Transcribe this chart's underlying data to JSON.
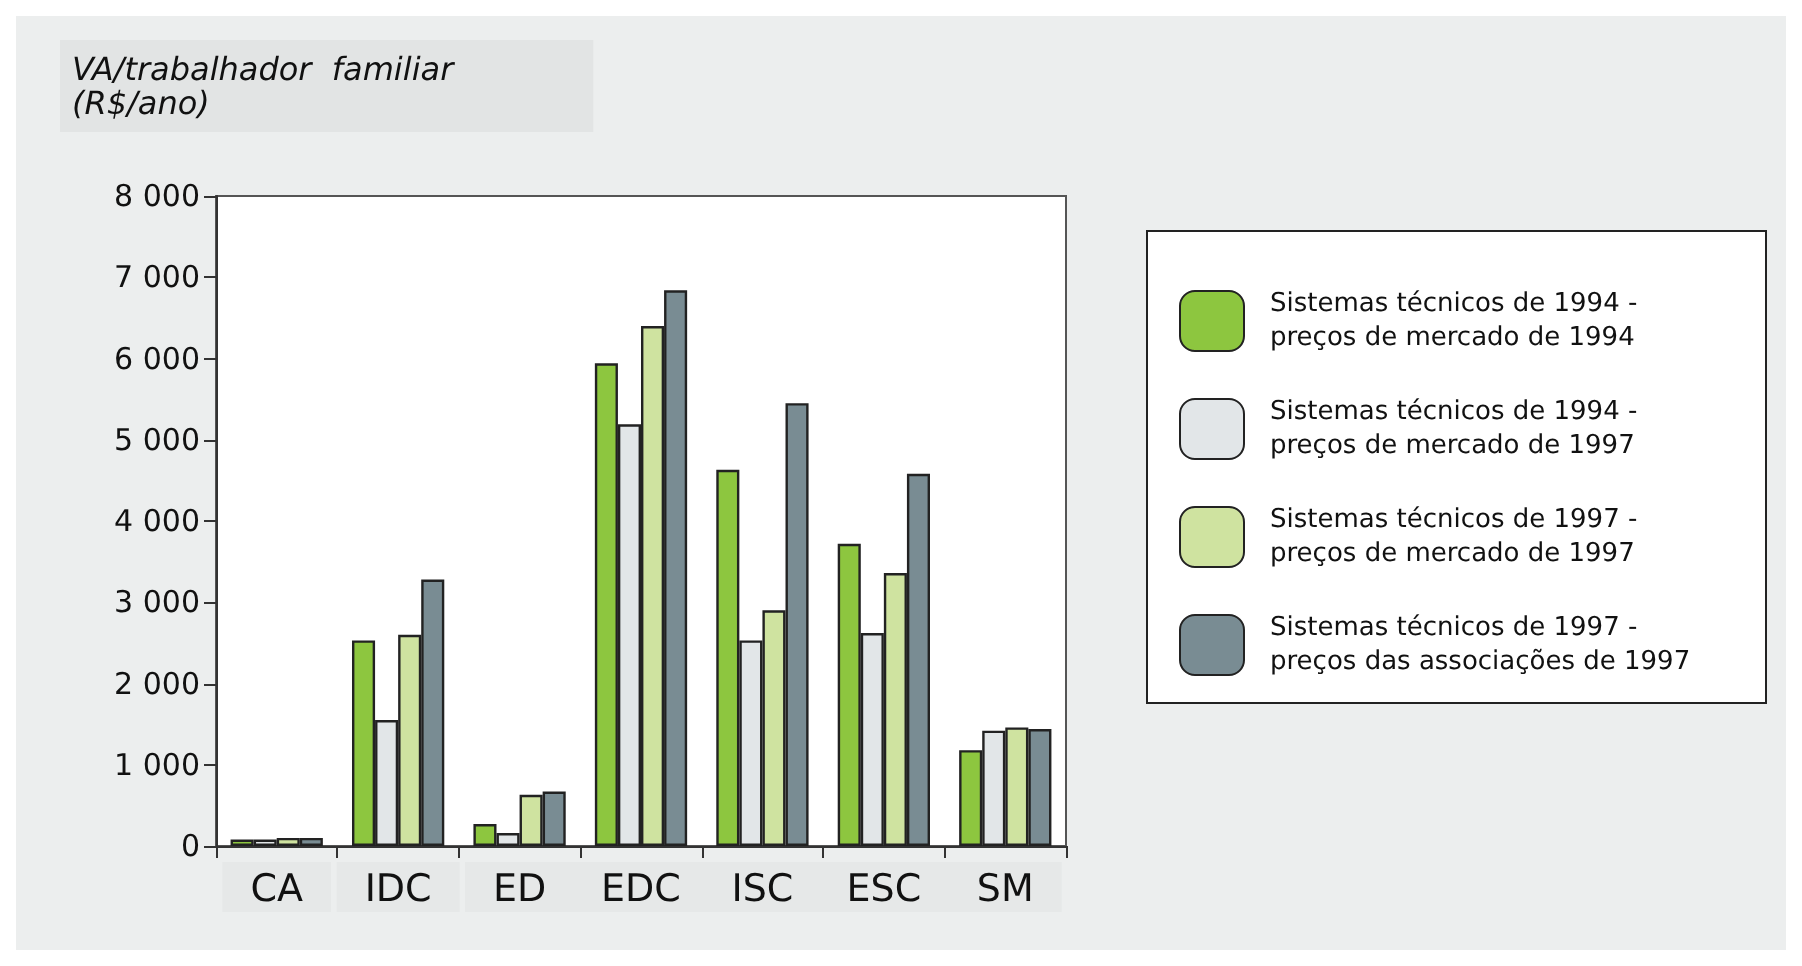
{
  "chart_data": {
    "type": "bar",
    "title": "VA/trabalhador  familiar\n(R$/ano)",
    "categories": [
      "CA",
      "IDC",
      "ED",
      "EDC",
      "ISC",
      "ESC",
      "SM"
    ],
    "series": [
      {
        "name": "Sistemas técnicos de 1994 - preços de mercado de 1994",
        "color": "#8dc63f",
        "values": [
          80,
          2530,
          270,
          5940,
          4630,
          3720,
          1180
        ]
      },
      {
        "name": "Sistemas técnicos de 1994 - preços de mercado de 1997",
        "color": "#e2e6e8",
        "values": [
          80,
          1550,
          160,
          5190,
          2530,
          2620,
          1420
        ]
      },
      {
        "name": "Sistemas técnicos de 1997 - preços de mercado de 1997",
        "color": "#cfe3a0",
        "values": [
          100,
          2600,
          630,
          6400,
          2900,
          3360,
          1460
        ]
      },
      {
        "name": "Sistemas técnicos de 1997 - preços das associações de 1997",
        "color": "#798c93",
        "values": [
          100,
          3280,
          670,
          6840,
          5450,
          4580,
          1440
        ]
      }
    ],
    "ylim": [
      0,
      8000
    ],
    "yticks": [
      0,
      {
        "value": 1000,
        "label": "1 000"
      },
      {
        "value": 2000,
        "label": "2 000"
      },
      {
        "value": 3000,
        "label": "3 000"
      },
      {
        "value": 4000,
        "label": "4 000"
      },
      {
        "value": 5000,
        "label": "5 000"
      },
      {
        "value": 6000,
        "label": "6 000"
      },
      {
        "value": 7000,
        "label": "7 000"
      },
      {
        "value": 8000,
        "label": "8 000"
      }
    ],
    "grid": false,
    "legend": "right"
  }
}
